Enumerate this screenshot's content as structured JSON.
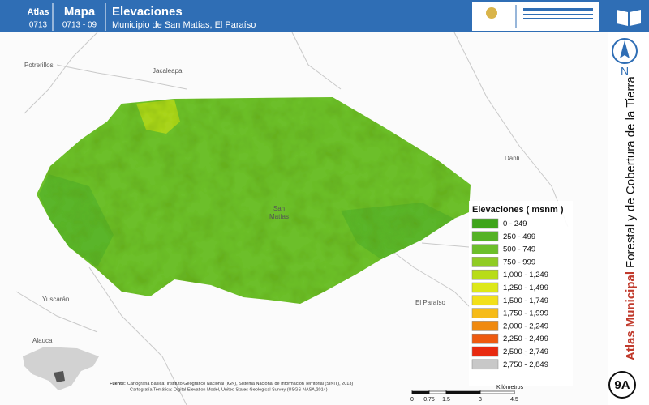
{
  "header": {
    "atlas_label": "Atlas",
    "atlas_code": "0713",
    "map_label": "Mapa",
    "map_code": "0713 - 09",
    "title": "Elevaciones",
    "subtitle": "Municipio de San Matías, El Paraíso"
  },
  "sidebar": {
    "north": "N",
    "series_title_bold": "Atlas Municipal",
    "series_title": "Forestal y de Cobertura de la Tierra",
    "badge": "9A"
  },
  "places": [
    {
      "name": "Potrerillos"
    },
    {
      "name": "Jacaleapa"
    },
    {
      "name": "Danlí"
    },
    {
      "name": "San Matías"
    },
    {
      "name": "Yuscarán"
    },
    {
      "name": "El Paraíso"
    },
    {
      "name": "Alauca"
    }
  ],
  "legend": {
    "title": "Elevaciones ( msnm )",
    "items": [
      {
        "label": "0 - 249",
        "color": "#3fa51a"
      },
      {
        "label": "250 - 499",
        "color": "#55b226"
      },
      {
        "label": "500 - 749",
        "color": "#6cbf2a"
      },
      {
        "label": "750 - 999",
        "color": "#90cc24"
      },
      {
        "label": "1,000 - 1,249",
        "color": "#b8dc18"
      },
      {
        "label": "1,250 - 1,499",
        "color": "#dde818"
      },
      {
        "label": "1,500 - 1,749",
        "color": "#f2e01a"
      },
      {
        "label": "1,750 - 1,999",
        "color": "#f6bb18"
      },
      {
        "label": "2,000 - 2,249",
        "color": "#f08a10"
      },
      {
        "label": "2,250 - 2,499",
        "color": "#ee5a10"
      },
      {
        "label": "2,500 - 2,749",
        "color": "#e82a10"
      },
      {
        "label": "2,750 - 2,849",
        "color": "#c8c8c8"
      }
    ]
  },
  "source": {
    "label": "Fuente:",
    "lines": [
      "Cartografía Básica: Instituto Geográfico Nacional (IGN), Sistema Nacional de Información Territorial (SINIT), 2013)",
      "Cartografía Temática: Digital Elevation Model, United States Geological Survey (USGS-NASA,2014)"
    ]
  },
  "scale": {
    "ticks": [
      0,
      0.75,
      1.5,
      3,
      4.5
    ],
    "unit": "Kilómetros"
  }
}
